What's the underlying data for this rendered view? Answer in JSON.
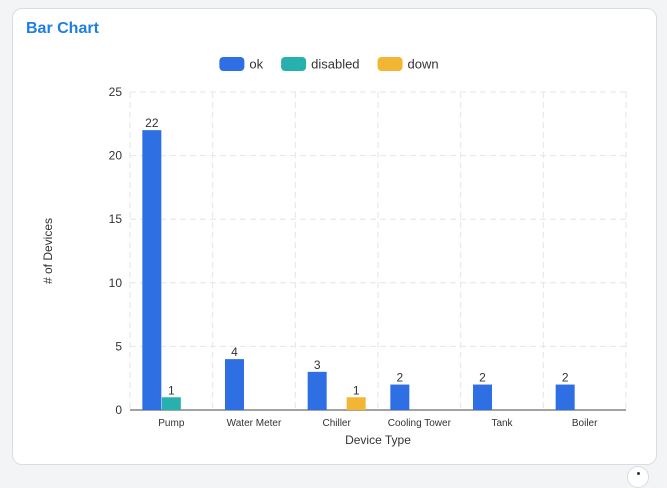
{
  "card": {
    "title": "Bar Chart"
  },
  "chart_data": {
    "type": "bar",
    "title": "",
    "xlabel": "Device Type",
    "ylabel": "# of Devices",
    "ylim": [
      0,
      25
    ],
    "yticks": [
      0,
      5,
      10,
      15,
      20,
      25
    ],
    "categories": [
      "Pump",
      "Water Meter",
      "Chiller",
      "Cooling Tower",
      "Tank",
      "Boiler"
    ],
    "series": [
      {
        "name": "ok",
        "color": "#2f6fe4",
        "values": [
          22,
          4,
          3,
          2,
          2,
          2
        ]
      },
      {
        "name": "disabled",
        "color": "#27b0ad",
        "values": [
          1,
          0,
          0,
          0,
          0,
          0
        ]
      },
      {
        "name": "down",
        "color": "#f2b534",
        "values": [
          0,
          0,
          1,
          0,
          0,
          0
        ]
      }
    ],
    "legend_position": "top-center",
    "grid": true,
    "data_labels": true
  }
}
